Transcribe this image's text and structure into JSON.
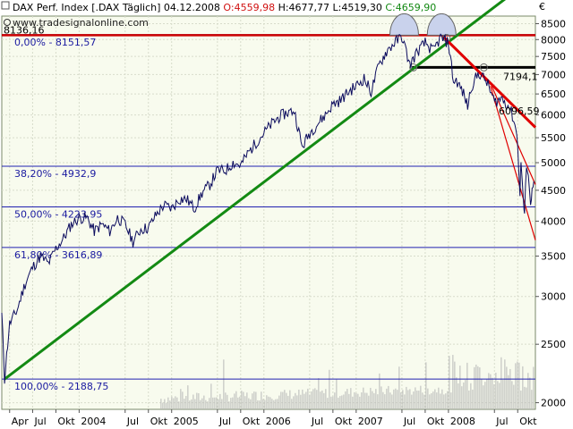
{
  "chart_data": {
    "type": "line",
    "title": "DAX Perf. Index [.DAX Täglich]",
    "header": {
      "date": "04.12.2008",
      "open": "O:4559,98",
      "high": "H:4677,77",
      "low": "L:4519,30",
      "close": "C:4659,90"
    },
    "watermark": "www.tradesignalonline.com",
    "currency_symbol": "€",
    "y_scale": "log",
    "ylim": [
      1950,
      8750
    ],
    "y_ticks": [
      {
        "value": 8500,
        "label": "8500"
      },
      {
        "value": 8000,
        "label": "8000"
      },
      {
        "value": 7500,
        "label": "7500"
      },
      {
        "value": 7000,
        "label": "7000"
      },
      {
        "value": 6500,
        "label": "6500"
      },
      {
        "value": 6000,
        "label": "6000"
      },
      {
        "value": 5500,
        "label": "5500"
      },
      {
        "value": 5000,
        "label": "5000"
      },
      {
        "value": 4500,
        "label": "4500"
      },
      {
        "value": 4000,
        "label": "4000"
      },
      {
        "value": 3500,
        "label": "3500"
      },
      {
        "value": 3000,
        "label": "3000"
      },
      {
        "value": 2500,
        "label": "2500"
      },
      {
        "value": 2000,
        "label": "2000"
      }
    ],
    "x_range": [
      "2003-03-01",
      "2008-12-10"
    ],
    "x_ticks": [
      {
        "date": "2003-04-01",
        "label": "Apr"
      },
      {
        "date": "2003-07-01",
        "label": "Jul"
      },
      {
        "date": "2003-10-01",
        "label": "Okt"
      },
      {
        "date": "2004-01-01",
        "label": "2004"
      },
      {
        "date": "2004-07-01",
        "label": "Jul"
      },
      {
        "date": "2004-10-01",
        "label": "Okt"
      },
      {
        "date": "2005-01-01",
        "label": "2005"
      },
      {
        "date": "2005-07-01",
        "label": "Jul"
      },
      {
        "date": "2005-10-01",
        "label": "Okt"
      },
      {
        "date": "2006-01-01",
        "label": "2006"
      },
      {
        "date": "2006-07-01",
        "label": "Jul"
      },
      {
        "date": "2006-10-01",
        "label": "Okt"
      },
      {
        "date": "2007-01-01",
        "label": "2007"
      },
      {
        "date": "2007-07-01",
        "label": "Jul"
      },
      {
        "date": "2007-10-01",
        "label": "Okt"
      },
      {
        "date": "2008-01-01",
        "label": "2008"
      },
      {
        "date": "2008-07-01",
        "label": "Jul"
      },
      {
        "date": "2008-10-01",
        "label": "Okt"
      }
    ],
    "fib_levels": [
      {
        "value": 8151.57,
        "label": "0,00% - 8151,57"
      },
      {
        "value": 4932.9,
        "label": "38,20% - 4932,9"
      },
      {
        "value": 4223.95,
        "label": "50,00% - 4223,95"
      },
      {
        "value": 3616.89,
        "label": "61,80% - 3616,89"
      },
      {
        "value": 2188.75,
        "label": "100,00% - 2188,75"
      }
    ],
    "horizontal_levels": [
      {
        "value": 8136.16,
        "label": "8136,16",
        "color": "#cc0000"
      },
      {
        "value": 7194.1,
        "label": "7194,1",
        "color": "#000000",
        "from": "2007-08-10"
      }
    ],
    "price_marker": {
      "value": 6096.59,
      "label": "6096,59",
      "color": "#e02020"
    },
    "trendlines": [
      {
        "name": "uptrend",
        "color": "#138a13",
        "from": {
          "date": "2003-03-12",
          "value": 2188.75
        },
        "to": {
          "date": "2008-12-10",
          "value": 10200
        }
      },
      {
        "name": "downtrend",
        "color": "#e00000",
        "from": {
          "date": "2007-12-10",
          "value": 8100
        },
        "to": {
          "date": "2008-12-10",
          "value": 5720
        }
      },
      {
        "name": "steep-1",
        "color": "#e00000",
        "from": {
          "date": "2008-06-15",
          "value": 6700
        },
        "to": {
          "date": "2008-12-10",
          "value": 3720
        }
      },
      {
        "name": "steep-2",
        "color": "#e00000",
        "from": {
          "date": "2008-06-20",
          "value": 6700
        },
        "to": {
          "date": "2008-12-10",
          "value": 4600
        }
      }
    ],
    "series": [
      {
        "color": "#0c0c5e",
        "points": [
          [
            "2003-03-01",
            2800
          ],
          [
            "2003-03-12",
            2190
          ],
          [
            "2003-04-01",
            2700
          ],
          [
            "2003-05-01",
            2850
          ],
          [
            "2003-06-01",
            3150
          ],
          [
            "2003-07-01",
            3350
          ],
          [
            "2003-08-01",
            3500
          ],
          [
            "2003-09-01",
            3400
          ],
          [
            "2003-10-01",
            3600
          ],
          [
            "2003-11-01",
            3750
          ],
          [
            "2003-12-01",
            3950
          ],
          [
            "2004-01-01",
            4050
          ],
          [
            "2004-02-01",
            4050
          ],
          [
            "2004-03-01",
            3850
          ],
          [
            "2004-04-01",
            3950
          ],
          [
            "2004-05-01",
            3850
          ],
          [
            "2004-06-01",
            4050
          ],
          [
            "2004-07-01",
            3950
          ],
          [
            "2004-08-01",
            3700
          ],
          [
            "2004-09-01",
            3880
          ],
          [
            "2004-10-01",
            3900
          ],
          [
            "2004-11-01",
            4100
          ],
          [
            "2004-12-01",
            4250
          ],
          [
            "2005-01-01",
            4200
          ],
          [
            "2005-02-01",
            4350
          ],
          [
            "2005-03-01",
            4350
          ],
          [
            "2005-04-01",
            4200
          ],
          [
            "2005-05-01",
            4450
          ],
          [
            "2005-06-01",
            4600
          ],
          [
            "2005-07-01",
            4850
          ],
          [
            "2005-08-01",
            4850
          ],
          [
            "2005-09-01",
            5000
          ],
          [
            "2005-10-01",
            4950
          ],
          [
            "2005-11-01",
            5200
          ],
          [
            "2005-12-01",
            5400
          ],
          [
            "2006-01-01",
            5600
          ],
          [
            "2006-02-01",
            5800
          ],
          [
            "2006-03-01",
            5950
          ],
          [
            "2006-04-01",
            6050
          ],
          [
            "2006-05-01",
            6100
          ],
          [
            "2006-06-01",
            5300
          ],
          [
            "2006-07-01",
            5600
          ],
          [
            "2006-08-01",
            5800
          ],
          [
            "2006-09-01",
            6000
          ],
          [
            "2006-10-01",
            6250
          ],
          [
            "2006-11-01",
            6350
          ],
          [
            "2006-12-01",
            6550
          ],
          [
            "2007-01-01",
            6700
          ],
          [
            "2007-02-01",
            6900
          ],
          [
            "2007-03-01",
            6550
          ],
          [
            "2007-04-01",
            7250
          ],
          [
            "2007-05-01",
            7650
          ],
          [
            "2007-06-01",
            7900
          ],
          [
            "2007-07-01",
            8100
          ],
          [
            "2007-08-01",
            7250
          ],
          [
            "2007-09-01",
            7650
          ],
          [
            "2007-10-01",
            7900
          ],
          [
            "2007-11-01",
            7650
          ],
          [
            "2007-12-01",
            8050
          ],
          [
            "2008-01-01",
            7900
          ],
          [
            "2008-01-21",
            6800
          ],
          [
            "2008-02-01",
            6850
          ],
          [
            "2008-03-01",
            6500
          ],
          [
            "2008-03-17",
            6200
          ],
          [
            "2008-04-01",
            6700
          ],
          [
            "2008-05-01",
            7050
          ],
          [
            "2008-06-01",
            6800
          ],
          [
            "2008-07-01",
            6300
          ],
          [
            "2008-08-01",
            6400
          ],
          [
            "2008-09-01",
            6150
          ],
          [
            "2008-09-20",
            5800
          ],
          [
            "2008-10-01",
            5400
          ],
          [
            "2008-10-10",
            4400
          ],
          [
            "2008-10-14",
            5050
          ],
          [
            "2008-10-24",
            4300
          ],
          [
            "2008-10-28",
            4050
          ],
          [
            "2008-11-05",
            5000
          ],
          [
            "2008-11-12",
            4800
          ],
          [
            "2008-11-21",
            4200
          ],
          [
            "2008-11-27",
            4600
          ],
          [
            "2008-12-04",
            4659.9
          ]
        ]
      }
    ],
    "volume_note": "volume bars along bottom",
    "grid": true
  }
}
